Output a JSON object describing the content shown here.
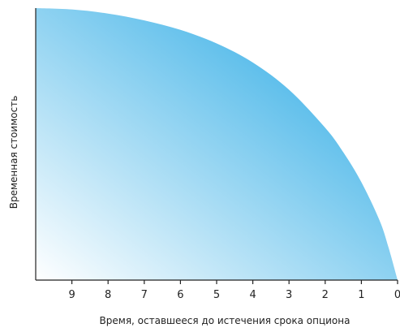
{
  "chart_data": {
    "type": "area",
    "xlabel": "Время, оставшееся до истечения срока опциона",
    "ylabel": "Временная стоимость",
    "x_ticks": [
      9,
      8,
      7,
      6,
      5,
      4,
      3,
      2,
      1,
      0
    ],
    "x_reversed": true,
    "xlim": [
      10,
      0
    ],
    "ylim": [
      0,
      1
    ],
    "grid": false,
    "legend": "none",
    "series": [
      {
        "x": [
          10,
          9,
          8,
          7,
          6,
          5,
          4,
          3,
          2,
          1.5,
          1,
          0.5,
          0.25,
          0
        ],
        "values": [
          1.0,
          0.995,
          0.98,
          0.955,
          0.92,
          0.87,
          0.8,
          0.7,
          0.56,
          0.47,
          0.36,
          0.22,
          0.12,
          0.0
        ]
      }
    ],
    "colors": {
      "fill_light": "#ffffff",
      "fill_dark": "#55bbea",
      "axis": "#222222"
    }
  }
}
